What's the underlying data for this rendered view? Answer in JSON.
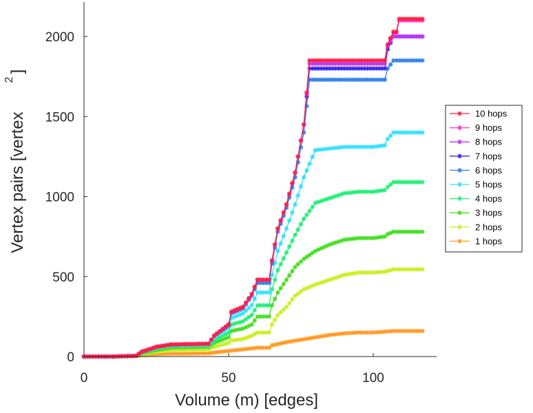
{
  "chart_data": {
    "type": "line",
    "title": "",
    "xlabel": "Volume (m) [edges]",
    "ylabel": "Vertex pairs [vertex",
    "ylabel_exponent": "2",
    "ylabel_close": "]",
    "xlim": [
      0,
      121
    ],
    "ylim": [
      0,
      2220
    ],
    "xticks": [
      0,
      50,
      100
    ],
    "yticks": [
      0,
      500,
      1000,
      1500,
      2000
    ],
    "legend_position": "right",
    "series": [
      {
        "name": "10 hops",
        "color": "#ff1f3f",
        "knots": [
          [
            0,
            0
          ],
          [
            10,
            0
          ],
          [
            18,
            5
          ],
          [
            20,
            30
          ],
          [
            25,
            60
          ],
          [
            30,
            75
          ],
          [
            43,
            80
          ],
          [
            45,
            130
          ],
          [
            50,
            200
          ],
          [
            51,
            280
          ],
          [
            55,
            310
          ],
          [
            58,
            390
          ],
          [
            60,
            480
          ],
          [
            64,
            480
          ],
          [
            65,
            600
          ],
          [
            67,
            800
          ],
          [
            70,
            950
          ],
          [
            73,
            1150
          ],
          [
            76,
            1450
          ],
          [
            78,
            1850
          ],
          [
            104,
            1850
          ],
          [
            105,
            1950
          ],
          [
            107,
            2030
          ],
          [
            108,
            2030
          ],
          [
            109,
            2110
          ],
          [
            117,
            2110
          ]
        ]
      },
      {
        "name": "9 hops",
        "color": "#ff33cc",
        "knots": [
          [
            0,
            0
          ],
          [
            10,
            0
          ],
          [
            18,
            5
          ],
          [
            20,
            30
          ],
          [
            25,
            60
          ],
          [
            30,
            75
          ],
          [
            43,
            80
          ],
          [
            45,
            130
          ],
          [
            50,
            200
          ],
          [
            51,
            280
          ],
          [
            55,
            310
          ],
          [
            58,
            390
          ],
          [
            60,
            480
          ],
          [
            64,
            480
          ],
          [
            65,
            600
          ],
          [
            67,
            800
          ],
          [
            70,
            950
          ],
          [
            73,
            1150
          ],
          [
            76,
            1450
          ],
          [
            78,
            1850
          ],
          [
            104,
            1850
          ],
          [
            105,
            1950
          ],
          [
            107,
            2020
          ],
          [
            108,
            2020
          ],
          [
            109,
            2100
          ],
          [
            117,
            2100
          ]
        ]
      },
      {
        "name": "8 hops",
        "color": "#bb33ff",
        "knots": [
          [
            0,
            0
          ],
          [
            10,
            0
          ],
          [
            18,
            5
          ],
          [
            20,
            30
          ],
          [
            25,
            60
          ],
          [
            30,
            75
          ],
          [
            43,
            80
          ],
          [
            45,
            130
          ],
          [
            50,
            200
          ],
          [
            51,
            280
          ],
          [
            55,
            310
          ],
          [
            58,
            390
          ],
          [
            60,
            480
          ],
          [
            64,
            480
          ],
          [
            65,
            600
          ],
          [
            67,
            800
          ],
          [
            70,
            950
          ],
          [
            73,
            1150
          ],
          [
            76,
            1450
          ],
          [
            78,
            1830
          ],
          [
            104,
            1830
          ],
          [
            105,
            1940
          ],
          [
            107,
            2000
          ],
          [
            117,
            2000
          ]
        ]
      },
      {
        "name": "7 hops",
        "color": "#3322ee",
        "knots": [
          [
            0,
            0
          ],
          [
            10,
            0
          ],
          [
            18,
            5
          ],
          [
            20,
            30
          ],
          [
            25,
            60
          ],
          [
            30,
            75
          ],
          [
            43,
            80
          ],
          [
            45,
            130
          ],
          [
            50,
            200
          ],
          [
            51,
            280
          ],
          [
            55,
            310
          ],
          [
            58,
            390
          ],
          [
            60,
            480
          ],
          [
            64,
            480
          ],
          [
            65,
            600
          ],
          [
            67,
            800
          ],
          [
            70,
            950
          ],
          [
            73,
            1150
          ],
          [
            76,
            1450
          ],
          [
            78,
            1800
          ],
          [
            104,
            1800
          ],
          [
            105,
            1920
          ],
          [
            107,
            2000
          ],
          [
            117,
            2000
          ]
        ]
      },
      {
        "name": "6 hops",
        "color": "#2e7fe8",
        "knots": [
          [
            0,
            0
          ],
          [
            10,
            0
          ],
          [
            18,
            5
          ],
          [
            20,
            30
          ],
          [
            25,
            60
          ],
          [
            30,
            75
          ],
          [
            43,
            80
          ],
          [
            45,
            130
          ],
          [
            50,
            195
          ],
          [
            51,
            270
          ],
          [
            55,
            300
          ],
          [
            58,
            380
          ],
          [
            60,
            460
          ],
          [
            64,
            460
          ],
          [
            65,
            580
          ],
          [
            67,
            780
          ],
          [
            70,
            930
          ],
          [
            73,
            1120
          ],
          [
            76,
            1400
          ],
          [
            78,
            1730
          ],
          [
            104,
            1730
          ],
          [
            105,
            1800
          ],
          [
            107,
            1850
          ],
          [
            117,
            1850
          ]
        ]
      },
      {
        "name": "5 hops",
        "color": "#33e0ff",
        "knots": [
          [
            0,
            0
          ],
          [
            10,
            0
          ],
          [
            18,
            5
          ],
          [
            20,
            28
          ],
          [
            25,
            55
          ],
          [
            30,
            70
          ],
          [
            43,
            75
          ],
          [
            45,
            120
          ],
          [
            50,
            180
          ],
          [
            51,
            240
          ],
          [
            55,
            270
          ],
          [
            58,
            320
          ],
          [
            60,
            400
          ],
          [
            64,
            400
          ],
          [
            65,
            510
          ],
          [
            67,
            660
          ],
          [
            70,
            800
          ],
          [
            73,
            950
          ],
          [
            76,
            1120
          ],
          [
            80,
            1290
          ],
          [
            85,
            1300
          ],
          [
            90,
            1310
          ],
          [
            95,
            1310
          ],
          [
            100,
            1310
          ],
          [
            104,
            1320
          ],
          [
            105,
            1360
          ],
          [
            107,
            1400
          ],
          [
            117,
            1400
          ]
        ]
      },
      {
        "name": "4 hops",
        "color": "#22ee77",
        "knots": [
          [
            0,
            0
          ],
          [
            10,
            0
          ],
          [
            18,
            5
          ],
          [
            20,
            25
          ],
          [
            25,
            50
          ],
          [
            30,
            65
          ],
          [
            43,
            70
          ],
          [
            45,
            100
          ],
          [
            50,
            150
          ],
          [
            51,
            200
          ],
          [
            55,
            220
          ],
          [
            58,
            260
          ],
          [
            60,
            320
          ],
          [
            64,
            320
          ],
          [
            65,
            420
          ],
          [
            67,
            540
          ],
          [
            70,
            650
          ],
          [
            73,
            760
          ],
          [
            76,
            860
          ],
          [
            80,
            960
          ],
          [
            85,
            990
          ],
          [
            90,
            1020
          ],
          [
            95,
            1030
          ],
          [
            100,
            1030
          ],
          [
            104,
            1040
          ],
          [
            105,
            1060
          ],
          [
            107,
            1090
          ],
          [
            117,
            1090
          ]
        ]
      },
      {
        "name": "3 hops",
        "color": "#44dd22",
        "knots": [
          [
            0,
            0
          ],
          [
            10,
            0
          ],
          [
            18,
            4
          ],
          [
            20,
            20
          ],
          [
            25,
            40
          ],
          [
            30,
            55
          ],
          [
            43,
            60
          ],
          [
            45,
            85
          ],
          [
            50,
            120
          ],
          [
            51,
            160
          ],
          [
            55,
            175
          ],
          [
            58,
            200
          ],
          [
            60,
            250
          ],
          [
            64,
            250
          ],
          [
            65,
            320
          ],
          [
            67,
            400
          ],
          [
            70,
            480
          ],
          [
            73,
            560
          ],
          [
            76,
            610
          ],
          [
            80,
            660
          ],
          [
            85,
            700
          ],
          [
            90,
            730
          ],
          [
            95,
            740
          ],
          [
            100,
            740
          ],
          [
            104,
            750
          ],
          [
            105,
            765
          ],
          [
            107,
            780
          ],
          [
            117,
            780
          ]
        ]
      },
      {
        "name": "2 hops",
        "color": "#ccee22",
        "knots": [
          [
            0,
            0
          ],
          [
            10,
            0
          ],
          [
            18,
            3
          ],
          [
            20,
            15
          ],
          [
            25,
            30
          ],
          [
            30,
            40
          ],
          [
            43,
            45
          ],
          [
            45,
            60
          ],
          [
            50,
            85
          ],
          [
            51,
            100
          ],
          [
            55,
            110
          ],
          [
            58,
            130
          ],
          [
            60,
            150
          ],
          [
            64,
            150
          ],
          [
            65,
            200
          ],
          [
            67,
            260
          ],
          [
            70,
            310
          ],
          [
            73,
            380
          ],
          [
            76,
            420
          ],
          [
            80,
            450
          ],
          [
            85,
            480
          ],
          [
            90,
            510
          ],
          [
            95,
            525
          ],
          [
            100,
            525
          ],
          [
            104,
            530
          ],
          [
            105,
            535
          ],
          [
            107,
            545
          ],
          [
            117,
            545
          ]
        ]
      },
      {
        "name": "1 hops",
        "color": "#ff9922",
        "knots": [
          [
            0,
            0
          ],
          [
            10,
            0
          ],
          [
            18,
            2
          ],
          [
            20,
            8
          ],
          [
            25,
            15
          ],
          [
            30,
            18
          ],
          [
            43,
            20
          ],
          [
            45,
            25
          ],
          [
            50,
            35
          ],
          [
            55,
            45
          ],
          [
            60,
            55
          ],
          [
            64,
            55
          ],
          [
            65,
            70
          ],
          [
            70,
            90
          ],
          [
            75,
            105
          ],
          [
            80,
            120
          ],
          [
            85,
            135
          ],
          [
            90,
            145
          ],
          [
            95,
            150
          ],
          [
            100,
            150
          ],
          [
            104,
            155
          ],
          [
            107,
            160
          ],
          [
            117,
            160
          ]
        ]
      }
    ]
  }
}
